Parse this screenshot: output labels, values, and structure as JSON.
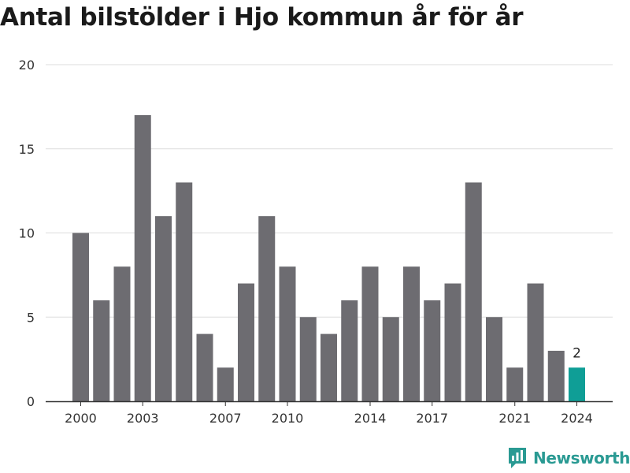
{
  "title": "Antal bilstölder i Hjo kommun år för år",
  "brand": {
    "name": "Newsworthy"
  },
  "colors": {
    "bar": "#6d6c71",
    "highlight": "#0f9e96",
    "grid": "#dddddd",
    "axis": "#333333",
    "brand": "#2a9a93"
  },
  "chart_data": {
    "type": "bar",
    "categories": [
      "2000",
      "2001",
      "2002",
      "2003",
      "2004",
      "2005",
      "2006",
      "2007",
      "2008",
      "2009",
      "2010",
      "2011",
      "2012",
      "2013",
      "2014",
      "2015",
      "2016",
      "2017",
      "2018",
      "2019",
      "2020",
      "2021",
      "2022",
      "2023",
      "2024"
    ],
    "values": [
      10,
      6,
      8,
      17,
      11,
      13,
      4,
      2,
      7,
      11,
      8,
      5,
      4,
      6,
      8,
      5,
      8,
      6,
      7,
      13,
      5,
      2,
      7,
      3,
      2
    ],
    "title": "Antal bilstölder i Hjo kommun år för år",
    "xlabel": "",
    "ylabel": "",
    "ylim": [
      0,
      20
    ],
    "yticks": [
      0,
      5,
      10,
      15,
      20
    ],
    "xtick_labels": [
      "2000",
      "2003",
      "2007",
      "2010",
      "2014",
      "2017",
      "2021",
      "2024"
    ],
    "highlight": {
      "category": "2024",
      "label": "2"
    },
    "grid": true,
    "legend": "none"
  }
}
